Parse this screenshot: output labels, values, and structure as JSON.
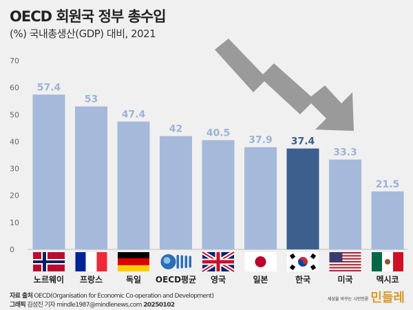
{
  "title": "OECD 회원국 정부 총수입",
  "subtitle": "(%) 국내총생산(GDP) 대비, 2021",
  "footer": {
    "source_label": "자료 출처",
    "source": "OECD(Organisation for Economic Co-operation and Development)",
    "graphic_label": "그래픽",
    "graphic": "김성진 기자 mindle1987@mindlenews.com",
    "date": "20250102"
  },
  "logo": {
    "tagline": "세상을 바꾸는 시민언론",
    "name": "민들레"
  },
  "colors": {
    "bar": "#a5b9da",
    "highlight": "#3c5f8e",
    "label": "#9db2d6",
    "background": "#f0f0f0"
  },
  "chart_data": {
    "type": "bar",
    "title": "OECD 회원국 정부 총수입",
    "subtitle": "(%) 국내총생산(GDP) 대비, 2021",
    "categories": [
      "노르웨이",
      "프랑스",
      "독일",
      "OECD평균",
      "영국",
      "일본",
      "한국",
      "미국",
      "멕시코"
    ],
    "flags": [
      "norway",
      "france",
      "germany",
      "oecd",
      "uk",
      "japan",
      "korea",
      "usa",
      "mexico"
    ],
    "values": [
      57.4,
      53,
      47.4,
      42,
      40.5,
      37.9,
      37.4,
      33.3,
      21.5
    ],
    "value_labels": [
      "57.4",
      "53",
      "47.4",
      "42",
      "40.5",
      "37.9",
      "37.4",
      "33.3",
      "21.5"
    ],
    "highlight": "한국",
    "ylim": [
      0,
      70
    ],
    "yticks": [
      0,
      10,
      20,
      30,
      40,
      50,
      60,
      70
    ],
    "grid": false,
    "annotation": "downward-arrow"
  }
}
